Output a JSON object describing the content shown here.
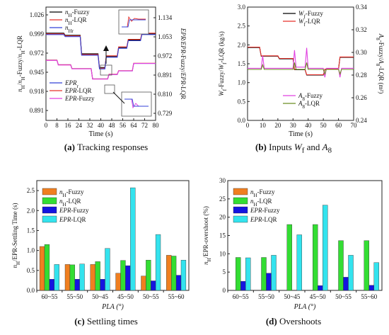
{
  "panels": {
    "a": {
      "letter": "(a)",
      "caption": "Tracking responses"
    },
    "b": {
      "letter": "(b)",
      "caption_prefix": "Inputs",
      "caption_w": "W",
      "caption_w_sub": "f",
      "caption_and": "and",
      "caption_a": "A",
      "caption_a_sub": "8"
    },
    "c": {
      "letter": "(c)",
      "caption": "Settling times"
    },
    "d": {
      "letter": "(d)",
      "caption": "Overshoots"
    }
  },
  "chart_data": [
    {
      "id": "a",
      "type": "line",
      "xlabel": "Time (s)",
      "ylabel_left": "nH/nH-Fuzzy/nH-LQR",
      "ylabel_right": "EPR/EPR-Fuzzy/EPR-LQR",
      "xlim": [
        0,
        80
      ],
      "ylim_left": [
        0.875,
        1.04
      ],
      "ylim_right": [
        0.718,
        1.16
      ],
      "x_ticks": [
        "0",
        "8",
        "16",
        "24",
        "32",
        "40",
        "48",
        "56",
        "64",
        "72",
        "80"
      ],
      "y_ticks_left": [
        "1.026",
        "0.999",
        "0.972",
        "0.945",
        "0.918",
        "0.891"
      ],
      "y_ticks_right": [
        "1.134",
        "1.053",
        "0.972",
        "0.891",
        "0.810",
        "0.729"
      ],
      "legend_top": [
        "nH-Fuzzy",
        "nH-LQR",
        "nHr"
      ],
      "legend_bottom": [
        "EPRr",
        "EPR-LQR",
        "EPR-Fuzzy"
      ],
      "series": [
        {
          "name": "nH-Fuzzy",
          "color": "#000000",
          "x": [
            0,
            13,
            14,
            25,
            26,
            38,
            39,
            43,
            44,
            52,
            53,
            59,
            60,
            69,
            70,
            80
          ],
          "y": [
            1.002,
            1.002,
            0.999,
            0.999,
            0.972,
            0.972,
            0.952,
            0.952,
            0.968,
            0.968,
            0.981,
            0.981,
            0.992,
            0.992,
            1.001,
            1.001
          ]
        },
        {
          "name": "nH-LQR",
          "color": "#e8302a",
          "x": [
            0,
            13,
            14,
            25,
            26,
            38,
            39,
            43,
            44,
            52,
            53,
            59,
            60,
            69,
            70,
            80
          ],
          "y": [
            1.001,
            1.001,
            0.998,
            0.998,
            0.971,
            0.971,
            0.951,
            0.951,
            0.969,
            0.969,
            0.982,
            0.982,
            0.993,
            0.993,
            1.002,
            1.002
          ]
        },
        {
          "name": "nHr",
          "color": "#3340d8",
          "x": [
            0,
            13,
            14,
            25,
            26,
            38,
            39,
            43,
            44,
            52,
            53,
            59,
            60,
            69,
            70,
            80
          ],
          "y": [
            1.0,
            1.0,
            0.997,
            0.997,
            0.97,
            0.97,
            0.95,
            0.95,
            0.967,
            0.967,
            0.98,
            0.98,
            0.991,
            0.991,
            1.0,
            1.0
          ]
        },
        {
          "name": "EPRr",
          "color": "#3340d8",
          "x": [
            0,
            8,
            9,
            18,
            19,
            33,
            34,
            45,
            46,
            52,
            53,
            63,
            64,
            80
          ],
          "y": [
            0.953,
            0.953,
            0.935,
            0.935,
            0.92,
            0.92,
            0.88,
            0.88,
            0.897,
            0.897,
            0.911,
            0.911,
            0.94,
            0.94
          ]
        },
        {
          "name": "EPR-LQR",
          "color": "#e8302a",
          "x": [
            0,
            8,
            9,
            18,
            19,
            33,
            34,
            45,
            46,
            52,
            53,
            63,
            64,
            80
          ],
          "y": [
            0.953,
            0.953,
            0.935,
            0.935,
            0.92,
            0.92,
            0.88,
            0.88,
            0.898,
            0.898,
            0.912,
            0.912,
            0.941,
            0.941
          ]
        },
        {
          "name": "EPR-Fuzzy",
          "color": "#e040e0",
          "x": [
            0,
            8,
            9,
            18,
            19,
            33,
            34,
            45,
            46,
            52,
            53,
            63,
            64,
            80
          ],
          "y": [
            0.952,
            0.952,
            0.934,
            0.934,
            0.919,
            0.919,
            0.879,
            0.879,
            0.897,
            0.897,
            0.911,
            0.911,
            0.94,
            0.94
          ]
        }
      ]
    },
    {
      "id": "b",
      "type": "line",
      "xlabel": "Time (s)",
      "ylabel_left": "Wf-Fuzzy/Wf-LQR (kg/s)",
      "ylabel_right": "A8-Fuzzy/A8-LQR (m²)",
      "xlim": [
        0,
        70
      ],
      "ylim_left": [
        0.0,
        3.0
      ],
      "ylim_right": [
        0.24,
        0.34
      ],
      "x_ticks": [
        "0",
        "10",
        "20",
        "30",
        "40",
        "50",
        "60",
        "70"
      ],
      "y_ticks_left": [
        "0.0",
        "0.5",
        "1.0",
        "1.5",
        "2.0",
        "2.5",
        "3.0"
      ],
      "y_ticks_right": [
        "0.24",
        "0.26",
        "0.28",
        "0.30",
        "0.32",
        "0.34"
      ],
      "legend_top": [
        "Wf-Fuzzy",
        "Wf-LQR"
      ],
      "legend_bottom": [
        "A8-Fuzzy",
        "A8-LQR"
      ],
      "series": [
        {
          "name": "Wf-Fuzzy",
          "color": "#000000",
          "x": [
            0,
            8,
            9,
            20,
            21,
            30,
            31,
            38,
            39,
            50,
            51,
            60,
            61,
            70
          ],
          "y": [
            1.93,
            1.93,
            1.7,
            1.7,
            1.63,
            1.63,
            1.34,
            1.34,
            1.2,
            1.2,
            1.35,
            1.35,
            1.67,
            1.67
          ]
        },
        {
          "name": "Wf-LQR",
          "color": "#e8302a",
          "x": [
            0,
            8,
            9,
            20,
            21,
            30,
            31,
            38,
            39,
            50,
            51,
            60,
            61,
            70
          ],
          "y": [
            1.94,
            1.94,
            1.71,
            1.71,
            1.64,
            1.64,
            1.35,
            1.35,
            1.21,
            1.21,
            1.36,
            1.36,
            1.68,
            1.68
          ]
        },
        {
          "name": "A8-Fuzzy",
          "color": "#e040e0",
          "x": [
            0,
            9,
            10,
            11,
            20,
            30,
            31,
            32,
            38,
            39,
            40,
            50,
            51,
            52,
            60,
            61,
            62,
            70
          ],
          "y": [
            0.286,
            0.286,
            0.297,
            0.286,
            0.286,
            0.286,
            0.302,
            0.287,
            0.287,
            0.304,
            0.286,
            0.286,
            0.278,
            0.286,
            0.286,
            0.278,
            0.286,
            0.286
          ]
        },
        {
          "name": "A8-LQR",
          "color": "#6b8e23",
          "x": [
            0,
            9,
            10,
            11,
            20,
            30,
            31,
            32,
            38,
            39,
            40,
            50,
            51,
            52,
            60,
            61,
            62,
            70
          ],
          "y": [
            0.285,
            0.285,
            0.289,
            0.285,
            0.285,
            0.285,
            0.291,
            0.285,
            0.285,
            0.291,
            0.285,
            0.285,
            0.281,
            0.285,
            0.285,
            0.281,
            0.285,
            0.285
          ]
        }
      ]
    },
    {
      "id": "c",
      "type": "bar",
      "xlabel": "PLA (°)",
      "ylabel": "nH/EPR-Settling Time (s)",
      "categories": [
        "60~55",
        "55~50",
        "50~45",
        "45~50",
        "50~55",
        "55~60"
      ],
      "ylim": [
        0,
        2.75
      ],
      "y_ticks": [
        "0.0",
        "0.5",
        "1.0",
        "1.5",
        "2.0",
        "2.5"
      ],
      "series": [
        {
          "name": "nH-Fuzzy",
          "color": "#f07f20",
          "values": [
            1.1,
            0.65,
            0.65,
            0.43,
            0.36,
            0.88
          ]
        },
        {
          "name": "nH-LQR",
          "color": "#33dd33",
          "values": [
            1.15,
            0.64,
            0.72,
            0.75,
            0.76,
            0.86
          ]
        },
        {
          "name": "EPR-Fuzzy",
          "color": "#1414e0",
          "values": [
            0.28,
            0.28,
            0.28,
            0.62,
            0.24,
            0.38
          ]
        },
        {
          "name": "EPR-LQR",
          "color": "#33e3ee",
          "values": [
            0.65,
            0.66,
            1.05,
            2.57,
            1.4,
            0.76
          ]
        }
      ]
    },
    {
      "id": "d",
      "type": "bar",
      "xlabel": "PLA (°)",
      "ylabel": "nH/EPR-overshoot (%)",
      "categories": [
        "60~55",
        "55~50",
        "50~45",
        "45~50",
        "50~55",
        "55~60"
      ],
      "ylim": [
        0,
        30
      ],
      "y_ticks": [
        "0",
        "5",
        "10",
        "15",
        "20",
        "25",
        "30"
      ],
      "series": [
        {
          "name": "nH-Fuzzy",
          "color": "#f07f20",
          "values": [
            0,
            0,
            0,
            0,
            0,
            0
          ]
        },
        {
          "name": "nH-LQR",
          "color": "#33dd33",
          "values": [
            9.0,
            9.0,
            18.0,
            18.0,
            13.6,
            13.6
          ]
        },
        {
          "name": "EPR-Fuzzy",
          "color": "#1414e0",
          "values": [
            2.5,
            4.7,
            0,
            1.3,
            3.6,
            1.4
          ]
        },
        {
          "name": "EPR-LQR",
          "color": "#33e3ee",
          "values": [
            8.9,
            9.6,
            15.2,
            23.3,
            9.6,
            7.6
          ]
        }
      ]
    }
  ]
}
